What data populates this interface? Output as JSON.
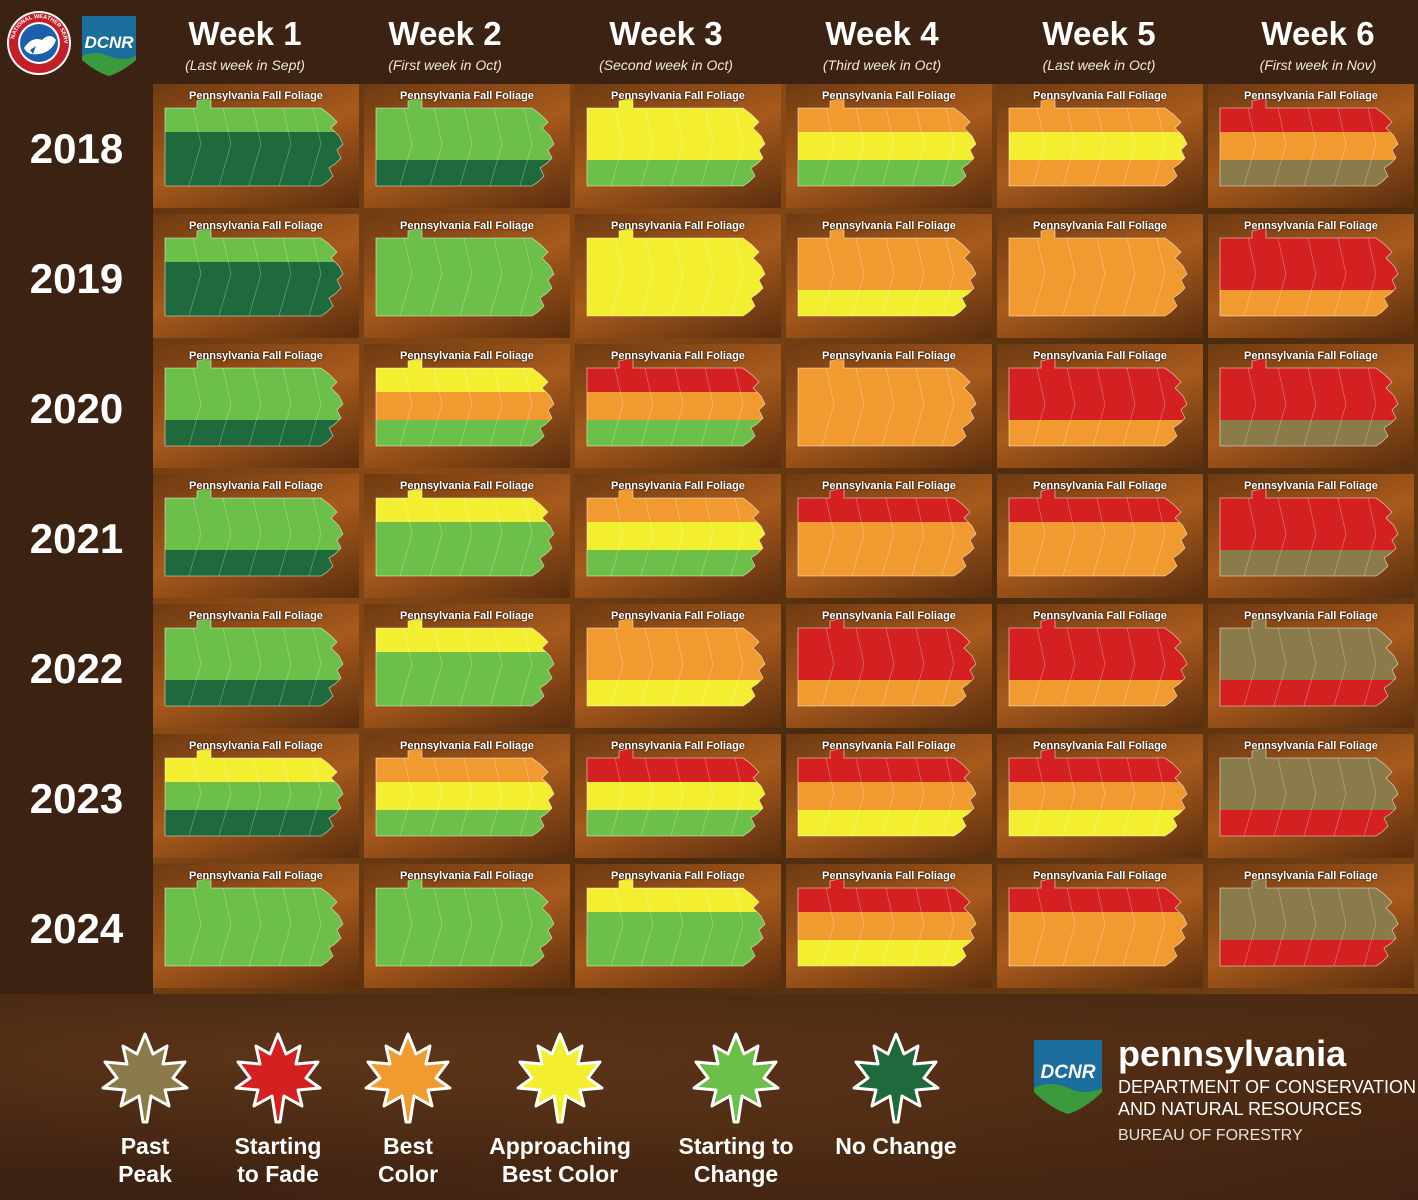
{
  "header": {
    "weeks": [
      {
        "title": "Week 1",
        "subtitle": "(Last week in Sept)"
      },
      {
        "title": "Week 2",
        "subtitle": "(First week in Oct)"
      },
      {
        "title": "Week 3",
        "subtitle": "(Second week in Oct)"
      },
      {
        "title": "Week 4",
        "subtitle": "(Third week in Oct)"
      },
      {
        "title": "Week 5",
        "subtitle": "(Last week in Oct)"
      },
      {
        "title": "Week 6",
        "subtitle": "(First week in Nov)"
      }
    ]
  },
  "years": [
    "2018",
    "2019",
    "2020",
    "2021",
    "2022",
    "2023",
    "2024"
  ],
  "map_title": "Pennsylvania Fall Foliage",
  "colors": {
    "past_peak": "#8b7a4a",
    "starting_to_fade": "#d42020",
    "best_color": "#f09a30",
    "approaching_best_color": "#f4ee30",
    "starting_to_change": "#6cbf48",
    "no_change": "#1f6a3c"
  },
  "maps": [
    [
      [
        "starting_to_change",
        "no_change",
        "no_change"
      ],
      [
        "starting_to_change",
        "starting_to_change",
        "no_change"
      ],
      [
        "approaching_best_color",
        "approaching_best_color",
        "starting_to_change"
      ],
      [
        "best_color",
        "approaching_best_color",
        "starting_to_change"
      ],
      [
        "best_color",
        "approaching_best_color",
        "best_color"
      ],
      [
        "starting_to_fade",
        "best_color",
        "past_peak"
      ]
    ],
    [
      [
        "starting_to_change",
        "no_change",
        "no_change"
      ],
      [
        "starting_to_change",
        "starting_to_change",
        "starting_to_change"
      ],
      [
        "approaching_best_color",
        "approaching_best_color",
        "approaching_best_color"
      ],
      [
        "best_color",
        "best_color",
        "approaching_best_color"
      ],
      [
        "best_color",
        "best_color",
        "best_color"
      ],
      [
        "starting_to_fade",
        "starting_to_fade",
        "best_color"
      ]
    ],
    [
      [
        "starting_to_change",
        "starting_to_change",
        "no_change"
      ],
      [
        "approaching_best_color",
        "best_color",
        "starting_to_change"
      ],
      [
        "starting_to_fade",
        "best_color",
        "starting_to_change"
      ],
      [
        "best_color",
        "best_color",
        "best_color"
      ],
      [
        "starting_to_fade",
        "starting_to_fade",
        "best_color"
      ],
      [
        "starting_to_fade",
        "starting_to_fade",
        "past_peak"
      ]
    ],
    [
      [
        "starting_to_change",
        "starting_to_change",
        "no_change"
      ],
      [
        "approaching_best_color",
        "starting_to_change",
        "starting_to_change"
      ],
      [
        "best_color",
        "approaching_best_color",
        "starting_to_change"
      ],
      [
        "starting_to_fade",
        "best_color",
        "best_color"
      ],
      [
        "starting_to_fade",
        "best_color",
        "best_color"
      ],
      [
        "starting_to_fade",
        "starting_to_fade",
        "past_peak"
      ]
    ],
    [
      [
        "starting_to_change",
        "starting_to_change",
        "no_change"
      ],
      [
        "approaching_best_color",
        "starting_to_change",
        "starting_to_change"
      ],
      [
        "best_color",
        "best_color",
        "approaching_best_color"
      ],
      [
        "starting_to_fade",
        "starting_to_fade",
        "best_color"
      ],
      [
        "starting_to_fade",
        "starting_to_fade",
        "best_color"
      ],
      [
        "past_peak",
        "past_peak",
        "starting_to_fade"
      ]
    ],
    [
      [
        "approaching_best_color",
        "starting_to_change",
        "no_change"
      ],
      [
        "best_color",
        "approaching_best_color",
        "starting_to_change"
      ],
      [
        "starting_to_fade",
        "approaching_best_color",
        "starting_to_change"
      ],
      [
        "starting_to_fade",
        "best_color",
        "approaching_best_color"
      ],
      [
        "starting_to_fade",
        "best_color",
        "approaching_best_color"
      ],
      [
        "past_peak",
        "past_peak",
        "starting_to_fade"
      ]
    ],
    [
      [
        "starting_to_change",
        "starting_to_change",
        "starting_to_change"
      ],
      [
        "starting_to_change",
        "starting_to_change",
        "starting_to_change"
      ],
      [
        "approaching_best_color",
        "starting_to_change",
        "starting_to_change"
      ],
      [
        "starting_to_fade",
        "best_color",
        "approaching_best_color"
      ],
      [
        "starting_to_fade",
        "best_color",
        "best_color"
      ],
      [
        "past_peak",
        "past_peak",
        "starting_to_fade"
      ]
    ]
  ],
  "legend": [
    {
      "label": "Past\nPeak",
      "color": "#8b7a4a"
    },
    {
      "label": "Starting\nto Fade",
      "color": "#d42020"
    },
    {
      "label": "Best\nColor",
      "color": "#f09a30"
    },
    {
      "label": "Approaching\nBest Color",
      "color": "#f4ee30"
    },
    {
      "label": "Starting to\nChange",
      "color": "#6cbf48"
    },
    {
      "label": "No Change",
      "color": "#1f6a3c"
    }
  ],
  "footer": {
    "logo_text": "DCNR",
    "state": "pennsylvania",
    "department": "DEPARTMENT OF CONSERVATION\nAND NATURAL RESOURCES",
    "bureau": "BUREAU OF FORESTRY"
  },
  "nws_logo_text": "NATIONAL WEATHER SERVICE"
}
